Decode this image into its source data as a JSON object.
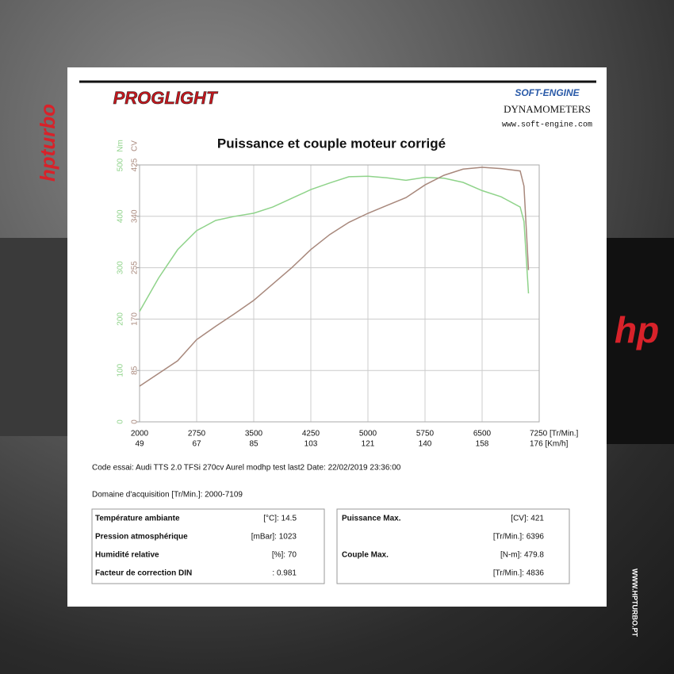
{
  "background": {
    "brand_left": "hpturbo",
    "brand_right": "hp",
    "website": "WWW.HPTURBO.PT"
  },
  "header": {
    "logo": "PROGLIGHT",
    "maker": "SOFT-ENGINE",
    "maker_line": "DYNAMOMETERS",
    "maker_url": "www.soft-engine.com"
  },
  "chart_data": {
    "type": "line",
    "title": "Puissance et couple moteur corrigé",
    "y_label": "Nm",
    "y2_label": "CV",
    "x": [
      2000,
      2250,
      2500,
      2750,
      3000,
      3250,
      3500,
      3750,
      4000,
      4250,
      4500,
      4750,
      5000,
      5250,
      5500,
      5750,
      6000,
      6250,
      6500,
      6750,
      7000,
      7050,
      7109
    ],
    "series": [
      {
        "name": "Couple",
        "color": "#8fd38a",
        "axis": "y",
        "values": [
          215,
          280,
          335,
          372,
          392,
          400,
          406,
          418,
          435,
          452,
          465,
          477,
          478,
          475,
          470,
          476,
          474,
          466,
          450,
          438,
          418,
          390,
          250
        ]
      },
      {
        "name": "Puissance",
        "color": "#a8887c",
        "axis": "y2",
        "values": [
          59,
          80,
          101,
          136,
          158,
          179,
          201,
          228,
          255,
          285,
          310,
          330,
          345,
          358,
          371,
          392,
          408,
          418,
          421,
          419,
          415,
          390,
          251
        ]
      }
    ],
    "xlim": [
      2000,
      7250
    ],
    "xticks": [
      2000,
      2750,
      3500,
      4250,
      5000,
      5750,
      6500,
      {
        "value": 7250,
        "label": "7250 [Tr/Min.]"
      }
    ],
    "speed_labels": [
      49,
      67,
      85,
      103,
      121,
      140,
      158,
      {
        "value": 176,
        "label": "176 [Km/h]"
      }
    ],
    "ylim": [
      0,
      500
    ],
    "yticks": [
      0,
      100,
      200,
      300,
      400,
      500
    ],
    "y2lim": [
      0,
      425
    ],
    "y2ticks": [
      0,
      85,
      170,
      255,
      340,
      425
    ],
    "grid": true
  },
  "info": {
    "test_code": "Code essai: Audi TTS 2.0 TFSi 270cv Aurel modhp test last2  Date: 22/02/2019 23:36:00",
    "domain": "Domaine d'acquisition [Tr/Min.]: 2000-7109"
  },
  "conditions": [
    [
      "Température ambiante",
      "[°C]: 14.5"
    ],
    [
      "Pression atmosphérique",
      "[mBar]: 1023"
    ],
    [
      "Humidité relative",
      "[%]: 70"
    ],
    [
      "Facteur de correction DIN",
      ": 0.981"
    ]
  ],
  "maxima": [
    {
      "label": "Puissance Max.",
      "rows": [
        "[CV]: 421",
        "[Tr/Min.]: 6396"
      ]
    },
    {
      "label": "Couple Max.",
      "rows": [
        "[N-m]: 479.8",
        "[Tr/Min.]: 4836"
      ]
    }
  ]
}
